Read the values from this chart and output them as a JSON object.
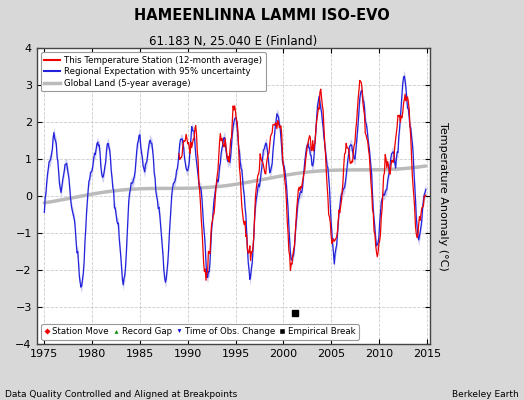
{
  "title": "HAMEENLINNA LAMMI ISO-EVO",
  "subtitle": "61.183 N, 25.040 E (Finland)",
  "ylabel": "Temperature Anomaly (°C)",
  "xlabel_left": "Data Quality Controlled and Aligned at Breakpoints",
  "xlabel_right": "Berkeley Earth",
  "xlim": [
    1974.2,
    2015.3
  ],
  "ylim": [
    -4,
    4
  ],
  "yticks": [
    -4,
    -3,
    -2,
    -1,
    0,
    1,
    2,
    3,
    4
  ],
  "xticks": [
    1975,
    1980,
    1985,
    1990,
    1995,
    2000,
    2005,
    2010,
    2015
  ],
  "fig_bg_color": "#d8d8d8",
  "plot_bg_color": "#ffffff",
  "grid_color": "#cccccc",
  "empirical_break_year": 2001.2,
  "empirical_break_value": -3.15,
  "seed": 17
}
